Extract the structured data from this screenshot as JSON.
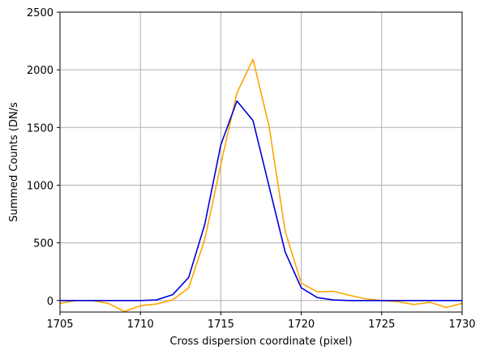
{
  "chart_data": {
    "type": "line",
    "title": "",
    "xlabel": "Cross dispersion coordinate (pixel)",
    "ylabel": "Summed Counts (DN/s",
    "xlim": [
      1705,
      1730
    ],
    "ylim": [
      -100,
      2500
    ],
    "xticks": [
      1705,
      1710,
      1715,
      1720,
      1725,
      1730
    ],
    "xtick_labels": [
      "1705",
      "1710",
      "1715",
      "1720",
      "1725",
      "1730"
    ],
    "yticks": [
      0,
      500,
      1000,
      1500,
      2000,
      2500
    ],
    "ytick_labels": [
      "0",
      "500",
      "1000",
      "1500",
      "2000",
      "2500"
    ],
    "grid": true,
    "x": [
      1705,
      1706,
      1707,
      1708,
      1709,
      1710,
      1711,
      1712,
      1713,
      1714,
      1715,
      1716,
      1717,
      1718,
      1719,
      1720,
      1721,
      1722,
      1723,
      1724,
      1725,
      1726,
      1727,
      1728,
      1729,
      1730
    ],
    "series": [
      {
        "color": "#ffa500",
        "values": [
          -25,
          0,
          0,
          -25,
          -95,
          -45,
          -30,
          5,
          110,
          530,
          1180,
          1800,
          2090,
          1510,
          600,
          150,
          75,
          80,
          45,
          15,
          0,
          -10,
          -35,
          -15,
          -60,
          -25
        ]
      },
      {
        "color": "#0000dd",
        "values": [
          0,
          0,
          0,
          0,
          0,
          0,
          5,
          50,
          200,
          660,
          1350,
          1730,
          1560,
          990,
          420,
          110,
          25,
          5,
          0,
          0,
          0,
          0,
          0,
          0,
          0,
          0
        ]
      }
    ]
  }
}
